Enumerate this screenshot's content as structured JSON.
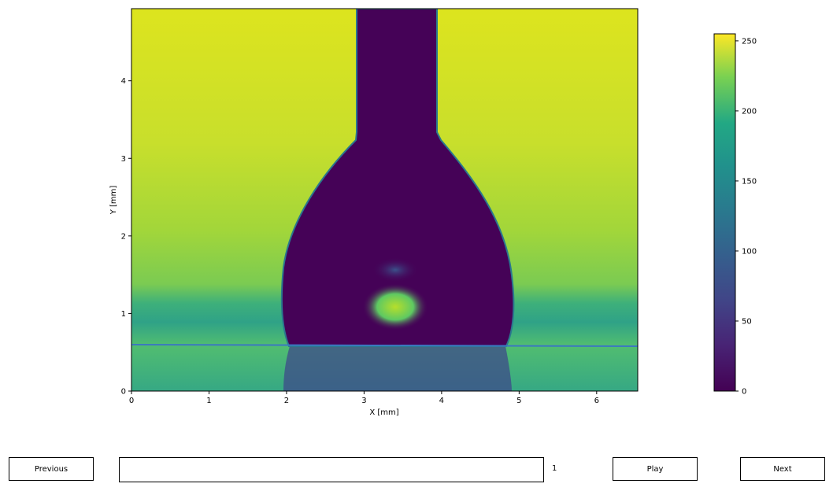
{
  "figure": {
    "xlabel": "X [mm]",
    "ylabel": "Y [mm]",
    "x_ticks": [
      "0",
      "1",
      "2",
      "3",
      "4",
      "5",
      "6"
    ],
    "y_ticks": [
      "0",
      "1",
      "2",
      "3",
      "4"
    ],
    "colorbar_ticks": [
      "0",
      "50",
      "100",
      "150",
      "200",
      "250"
    ],
    "colormap": "viridis"
  },
  "chart_data": {
    "type": "heatmap",
    "title": "",
    "xlabel": "X [mm]",
    "ylabel": "Y [mm]",
    "xlim": [
      0,
      6.53
    ],
    "ylim": [
      0,
      4.93
    ],
    "x_ticks": [
      0,
      1,
      2,
      3,
      4,
      5,
      6
    ],
    "y_ticks": [
      0,
      1,
      2,
      3,
      4
    ],
    "colorbar": {
      "min": 0,
      "max": 255,
      "ticks": [
        0,
        50,
        100,
        150,
        200,
        250
      ]
    },
    "grid": false,
    "substrate_line_y": 0.59,
    "needle_x": [
      2.9,
      3.93
    ],
    "drop_contact_x": [
      2.03,
      4.83
    ],
    "colors": {
      "dark": "#440154",
      "teal": "#21918c",
      "yellow": "#d2e21b",
      "line": "#3b78c0"
    }
  },
  "controls": {
    "previous_label": "Previous",
    "play_label": "Play",
    "next_label": "Next",
    "frame_value": "1"
  }
}
